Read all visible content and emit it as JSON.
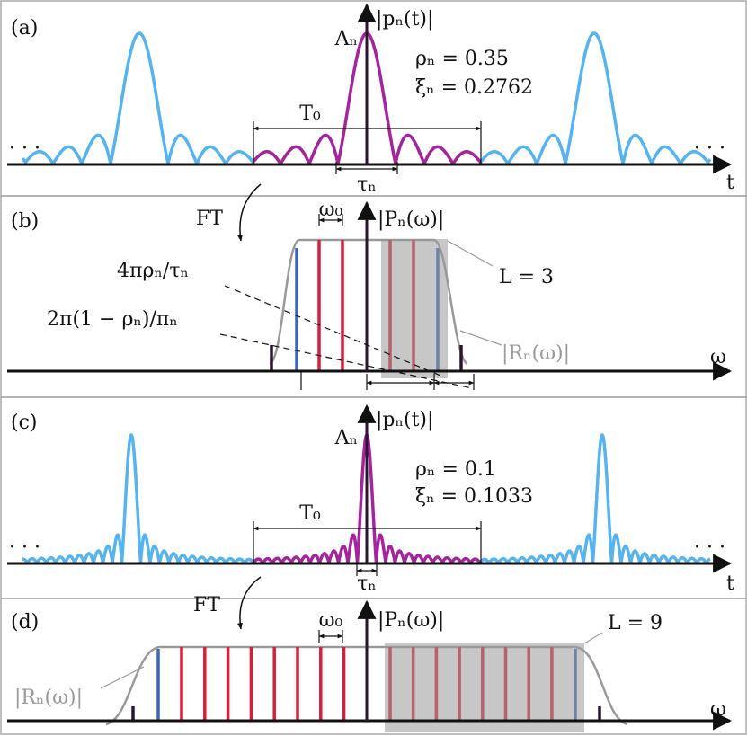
{
  "panels": [
    {
      "label": "(a)",
      "amplitude": "Aₙ",
      "axis_y": "|pₙ(t)|",
      "rho": "ρₙ = 0.35",
      "xi": "ξₙ = 0.2762",
      "period": "T₀",
      "width": "τₙ",
      "axis_x": "t",
      "ellipsis_left": "· · ·",
      "ellipsis_right": "· · ·"
    },
    {
      "label": "(b)",
      "transform": "FT",
      "spacing": "ω₀",
      "axis_y": "|Pₙ(ω)|",
      "bandwidth": "4πρₙ/τₙ",
      "rolloff": "2π(1 − ρₙ)/πₙ",
      "count": "L = 3",
      "envelope": "|Rₙ(ω)|",
      "axis_x": "ω"
    },
    {
      "label": "(c)",
      "amplitude": "Aₙ",
      "axis_y": "|pₙ(t)|",
      "rho": "ρₙ = 0.1",
      "xi": "ξₙ = 0.1033",
      "period": "T₀",
      "width": "τₙ",
      "axis_x": "t",
      "ellipsis_left": "· · ·",
      "ellipsis_right": "· · ·"
    },
    {
      "label": "(d)",
      "transform": "FT",
      "spacing": "ω₀",
      "axis_y": "|Pₙ(ω)|",
      "count": "L = 9",
      "envelope": "|Rₙ(ω)|",
      "axis_x": "ω"
    }
  ]
}
